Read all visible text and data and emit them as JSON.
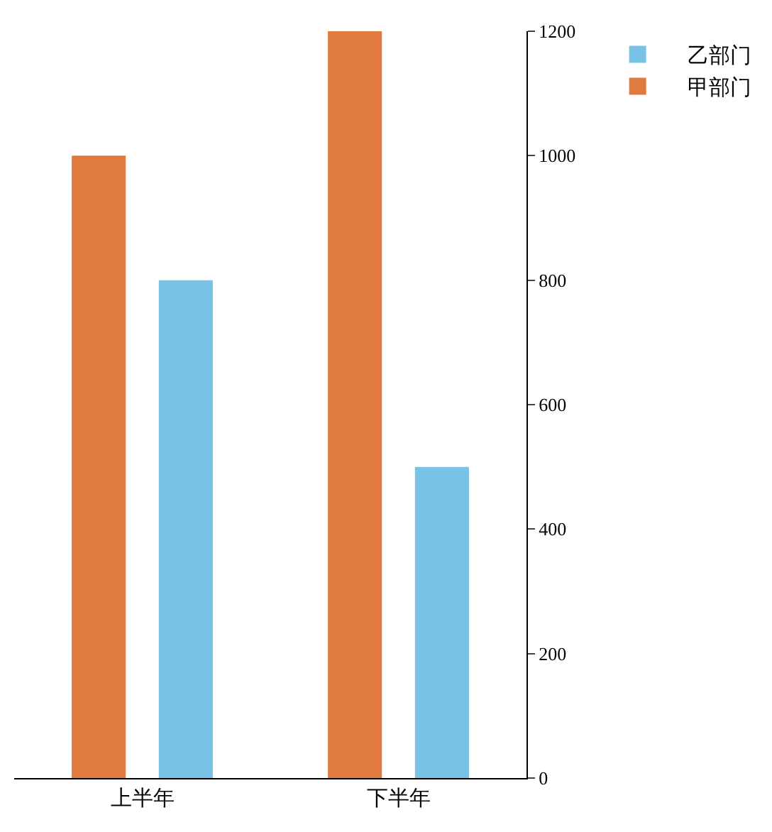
{
  "chart_data": {
    "type": "bar",
    "categories": [
      "上半年",
      "下半年"
    ],
    "series": [
      {
        "name": "甲部门",
        "color": "#e07a3e",
        "values": [
          1000,
          1200
        ]
      },
      {
        "name": "乙部门",
        "color": "#78c3e5",
        "values": [
          800,
          500
        ]
      }
    ],
    "ylim": [
      0,
      1200
    ],
    "yticks": [
      0,
      200,
      400,
      600,
      800,
      1000,
      1200
    ],
    "grid": false,
    "legend": "top right"
  }
}
